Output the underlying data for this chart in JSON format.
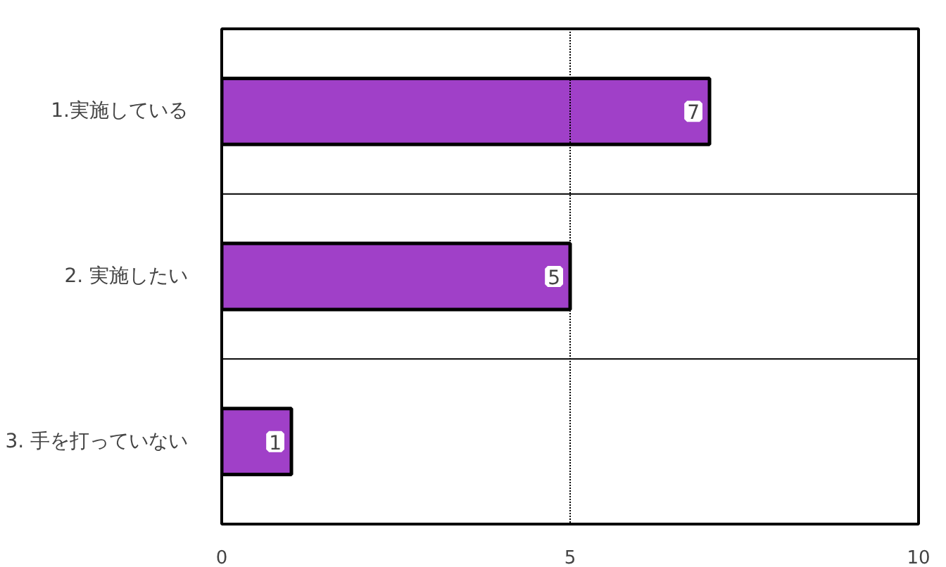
{
  "chart_data": {
    "type": "bar",
    "orientation": "horizontal",
    "categories": [
      "1.実施している",
      "2. 実施したい",
      "3. 手を打っていない"
    ],
    "values": [
      7,
      5,
      1
    ],
    "color": "#a040c8",
    "xlim": [
      0,
      10
    ],
    "xticks": [
      0,
      5,
      10
    ],
    "ref_lines": [
      {
        "axis": "x",
        "value": 5,
        "line_style": "dotted"
      }
    ],
    "data_labels": true,
    "grid": "y"
  }
}
